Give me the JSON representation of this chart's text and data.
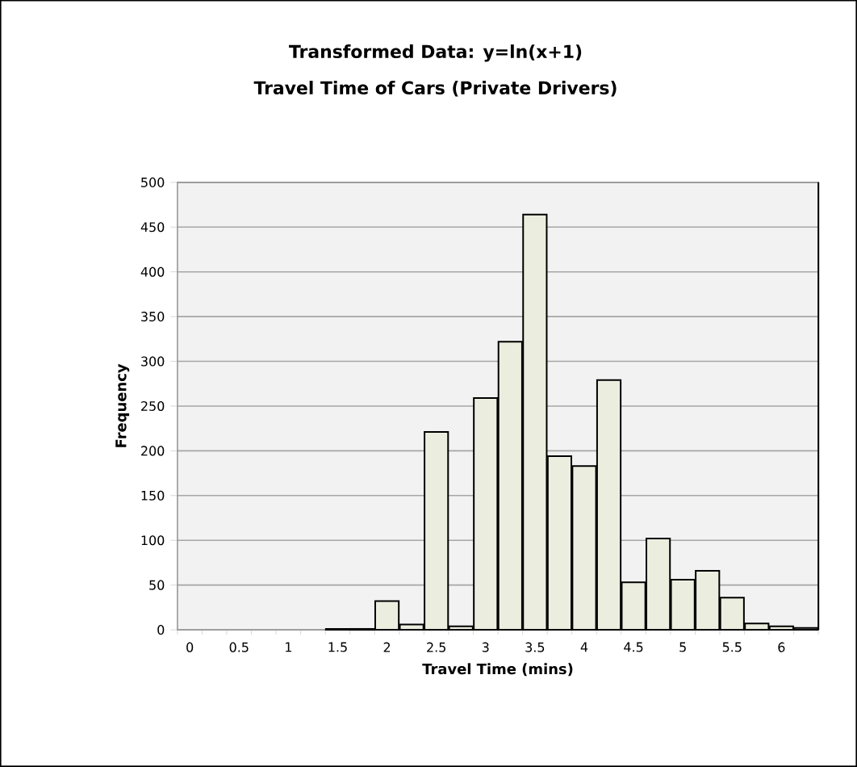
{
  "chart_data": {
    "type": "bar",
    "title": "Transformed Data: y=ln(x+1)",
    "subtitle": "Travel Time of Cars (Private Drivers)",
    "xlabel": "Travel Time (mins)",
    "ylabel": "Frequency",
    "categories": [
      "0",
      null,
      "0.5",
      null,
      "1",
      null,
      "1.5",
      null,
      "2",
      null,
      "2.5",
      null,
      "3",
      null,
      "3.5",
      null,
      "4",
      null,
      "4.5",
      null,
      "5",
      null,
      "5.5",
      null,
      "6",
      null
    ],
    "values": [
      0,
      0,
      0,
      0,
      0,
      0,
      1,
      1,
      32,
      6,
      221,
      4,
      259,
      322,
      464,
      194,
      183,
      279,
      53,
      102,
      56,
      66,
      36,
      7,
      4,
      2
    ],
    "color": "#ebeedf",
    "ylim": [
      0,
      500
    ],
    "yticks": [
      0,
      50,
      100,
      150,
      200,
      250,
      300,
      350,
      400,
      450,
      500
    ],
    "grid": "y"
  }
}
